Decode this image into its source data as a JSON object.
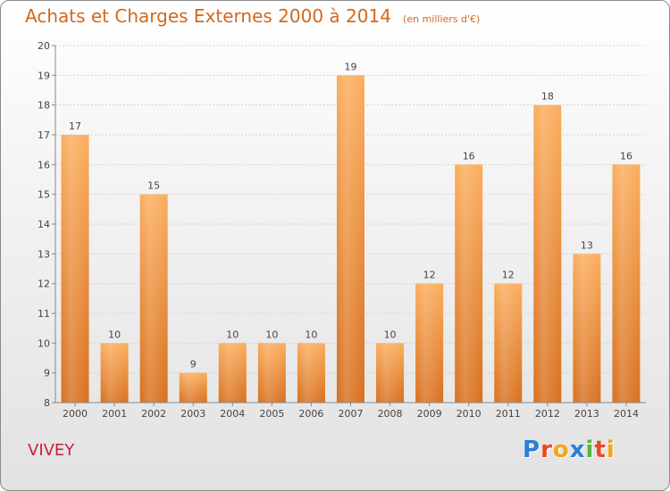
{
  "header": {
    "title": "Achats et Charges Externes 2000 à 2014",
    "subtitle": "(en milliers d'€)"
  },
  "footer": {
    "commune": "VIVEY",
    "logo": {
      "text": "Proxiti",
      "colors": [
        "#2a7fd4",
        "#e8492b",
        "#f2a51c",
        "#2a7fd4",
        "#55b43b",
        "#e8492b",
        "#f2a51c"
      ]
    }
  },
  "chart_data": {
    "type": "bar",
    "title": "Achats et Charges Externes 2000 à 2014",
    "subtitle": "(en milliers d'€)",
    "categories": [
      "2000",
      "2001",
      "2002",
      "2003",
      "2004",
      "2005",
      "2006",
      "2007",
      "2008",
      "2009",
      "2010",
      "2011",
      "2012",
      "2013",
      "2014"
    ],
    "values": [
      17,
      10,
      15,
      9,
      10,
      10,
      10,
      19,
      10,
      12,
      16,
      12,
      18,
      13,
      16
    ],
    "ylim": [
      8,
      20
    ],
    "yticks": [
      8,
      9,
      10,
      11,
      12,
      13,
      14,
      15,
      16,
      17,
      18,
      19,
      20
    ],
    "grid": true,
    "bar_color": "#f4a04a"
  }
}
